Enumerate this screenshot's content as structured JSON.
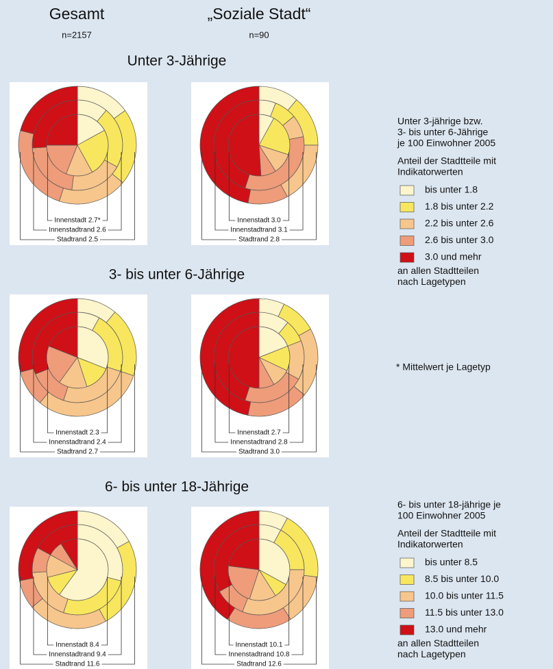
{
  "header": {
    "columns": [
      {
        "title": "Gesamt",
        "n": "n=2157"
      },
      {
        "title": "„Soziale Stadt“",
        "n": "n=90"
      }
    ]
  },
  "class_colors": [
    "#fdf5cc",
    "#f8e65e",
    "#f7c68c",
    "#ee9c7a",
    "#cf1016"
  ],
  "sections": [
    {
      "title": "Unter 3-Jährige",
      "legend": 0,
      "panels": [
        {
          "rings": [
            {
              "label": "Innenstadt 2.7*",
              "values": [
                17,
                25,
                14,
                19,
                25
              ]
            },
            {
              "label": "Innenstadtrand 2.6",
              "values": [
                11,
                22,
                19,
                22,
                26
              ]
            },
            {
              "label": "Stadtrand 2.5",
              "values": [
                15,
                21,
                19,
                24,
                21
              ]
            }
          ]
        },
        {
          "rings": [
            {
              "label": "Innenstadt 3.0",
              "values": [
                8,
                22,
                11,
                8,
                51
              ]
            },
            {
              "label": "Innenstadtrand 3.1",
              "values": [
                6,
                8,
                8,
                33,
                45
              ]
            },
            {
              "label": "Stadtrand 2.8",
              "values": [
                11,
                14,
                17,
                11,
                47
              ]
            }
          ]
        }
      ]
    },
    {
      "title": "3- bis unter 6-Jährige",
      "legend": 0,
      "panels": [
        {
          "rings": [
            {
              "label": "Innenstadt 2.3",
              "values": [
                31,
                14,
                15,
                21,
                19
              ]
            },
            {
              "label": "Innenstadtrand 2.4",
              "values": [
                8,
                22,
                25,
                14,
                31
              ]
            },
            {
              "label": "Stadtrand 2.7",
              "values": [
                11,
                19,
                31,
                10,
                29
              ]
            }
          ]
        },
        {
          "rings": [
            {
              "label": "Innenstadt 2.7",
              "values": [
                19,
                13,
                10,
                8,
                50
              ]
            },
            {
              "label": "Innenstadtrand 2.8",
              "values": [
                11,
                8,
                14,
                22,
                45
              ]
            },
            {
              "label": "Stadtrand 3.0",
              "values": [
                7,
                10,
                19,
                17,
                47
              ]
            }
          ]
        }
      ]
    },
    {
      "title": "6- bis unter 18-Jährige",
      "legend": 1,
      "panels": [
        {
          "rings": [
            {
              "label": "Innenstadt 8.4",
              "values": [
                60,
                11,
                12,
                8,
                9
              ]
            },
            {
              "label": "Innenstadtrand 9.4",
              "values": [
                29,
                26,
                19,
                9,
                17
              ]
            },
            {
              "label": "Stadtrand 11.6",
              "values": [
                17,
                25,
                22,
                8,
                28
              ]
            }
          ]
        },
        {
          "rings": [
            {
              "label": "Innenstadt 10.1",
              "values": [
                33,
                8,
                14,
                22,
                23
              ]
            },
            {
              "label": "Innenstadtrand 10.8",
              "values": [
                8,
                17,
                31,
                11,
                33
              ]
            },
            {
              "label": "Stadtrand 12.6",
              "values": [
                8,
                19,
                14,
                18,
                41
              ]
            }
          ]
        }
      ]
    }
  ],
  "legends": [
    {
      "title_lines": [
        "Unter 3-jährige bzw.",
        "3- bis unter 6-Jährige",
        "je 100 Einwohner 2005"
      ],
      "subtitle_lines": [
        "Anteil der Stadtteile mit",
        "Indikatorwerten"
      ],
      "items": [
        "bis unter 1.8",
        "1.8 bis unter 2.2",
        "2.2 bis unter 2.6",
        "2.6 bis unter 3.0",
        "3.0 und mehr"
      ],
      "footer_lines": [
        "an allen Stadtteilen",
        "nach Lagetypen"
      ]
    },
    {
      "title_lines": [
        "6- bis unter 18-jährige je",
        "100 Einwohner 2005"
      ],
      "subtitle_lines": [
        "Anteil der Stadtteile mit",
        "Indikatorwerten"
      ],
      "items": [
        "bis unter 8.5",
        "8.5 bis unter 10.0",
        "10.0 bis unter 11.5",
        "11.5 bis unter 13.0",
        "13.0 und mehr"
      ],
      "footer_lines": [
        "an allen Stadtteilen",
        "nach Lagetypen"
      ]
    }
  ],
  "note": "* Mittelwert je Lagetyp"
}
